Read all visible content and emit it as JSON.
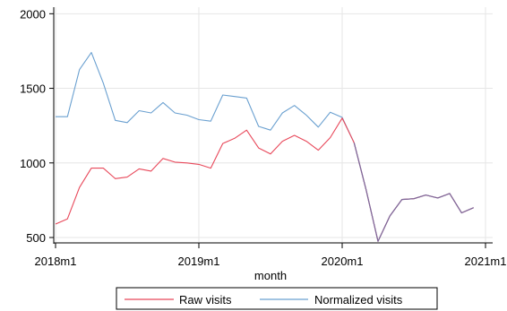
{
  "chart_data": {
    "type": "line",
    "title": "",
    "xlabel": "month",
    "ylabel": "",
    "ylim": [
      470,
      2020
    ],
    "xlim": [
      "2018m1",
      "2021m1"
    ],
    "yticks": [
      500,
      1000,
      1500,
      2000
    ],
    "xticks": [
      "2018m1",
      "2019m1",
      "2020m1",
      "2021m1"
    ],
    "grid": true,
    "legend_position": "bottom",
    "x": [
      "2018m1",
      "2018m2",
      "2018m3",
      "2018m4",
      "2018m5",
      "2018m6",
      "2018m7",
      "2018m8",
      "2018m9",
      "2018m10",
      "2018m11",
      "2018m12",
      "2019m1",
      "2019m2",
      "2019m3",
      "2019m4",
      "2019m5",
      "2019m6",
      "2019m7",
      "2019m8",
      "2019m9",
      "2019m10",
      "2019m11",
      "2019m12",
      "2020m1",
      "2020m2",
      "2020m3",
      "2020m4",
      "2020m5",
      "2020m6",
      "2020m7",
      "2020m8",
      "2020m9",
      "2020m10",
      "2020m11",
      "2020m12"
    ],
    "series": [
      {
        "name": "Raw visits",
        "color": "#e8485a",
        "values": [
          590,
          625,
          835,
          965,
          965,
          895,
          905,
          960,
          945,
          1030,
          1005,
          1000,
          990,
          965,
          1130,
          1165,
          1220,
          1100,
          1060,
          1145,
          1185,
          1145,
          1085,
          1170,
          1300,
          1135,
          820,
          475,
          645,
          755,
          760,
          785,
          765,
          795,
          665,
          700
        ]
      },
      {
        "name": "Normalized visits",
        "color": "#6aa0d0",
        "values": [
          1310,
          1310,
          1625,
          1740,
          1535,
          1285,
          1270,
          1350,
          1335,
          1405,
          1335,
          1320,
          1290,
          1280,
          1455,
          1445,
          1435,
          1245,
          1220,
          1335,
          1385,
          1320,
          1240,
          1340,
          1305,
          1135,
          820,
          475,
          645,
          755,
          760,
          785,
          765,
          795,
          665,
          700
        ]
      }
    ]
  }
}
